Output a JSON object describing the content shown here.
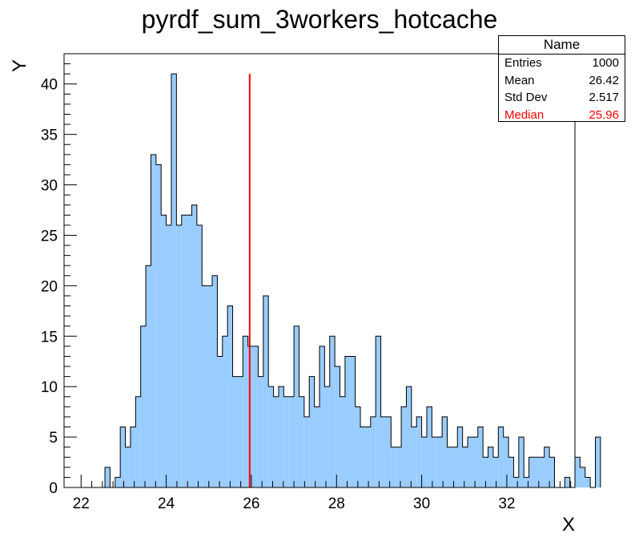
{
  "chart_data": {
    "type": "histogram",
    "title": "pyrdf_sum_3workers_hotcache",
    "xlabel": "X",
    "ylabel": "Y",
    "xlim": [
      21.6,
      33.6
    ],
    "ylim": [
      0,
      43
    ],
    "bin_width": 0.12,
    "x_ticks": [
      "22",
      "24",
      "26",
      "28",
      "30",
      "32"
    ],
    "y_ticks": [
      "0",
      "5",
      "10",
      "15",
      "20",
      "25",
      "30",
      "35",
      "40"
    ],
    "fill_color": "#99ccff",
    "line_color": "#000000",
    "bin_counts": [
      0,
      0,
      0,
      0,
      0,
      0,
      0,
      0,
      2,
      0,
      1,
      6,
      4,
      6,
      9,
      16,
      22,
      33,
      32,
      27,
      26,
      41,
      26,
      27,
      27,
      28,
      26,
      20,
      20,
      21,
      13,
      15,
      18,
      11,
      11,
      15,
      14,
      14,
      11,
      19,
      10,
      9,
      10,
      9,
      9,
      16,
      9,
      7,
      11,
      8,
      14,
      10,
      15,
      12,
      9,
      13,
      13,
      8,
      6,
      6,
      7,
      15,
      7,
      7,
      4,
      4,
      8,
      10,
      6,
      7,
      5,
      8,
      5,
      5,
      7,
      4,
      4,
      6,
      4,
      5,
      5,
      6,
      3,
      4,
      3,
      6,
      5,
      3,
      1,
      5,
      1,
      3,
      3,
      3,
      4,
      3,
      0,
      0,
      1,
      0,
      3,
      2,
      1,
      0,
      5
    ],
    "median_line": {
      "x": 25.96,
      "color": "#ff0000",
      "y_top": 41
    },
    "stats": {
      "name": "Name",
      "rows": [
        {
          "label": "Entries",
          "value": "1000"
        },
        {
          "label": "Mean",
          "value": "26.42"
        },
        {
          "label": "Std Dev",
          "value": "2.517"
        },
        {
          "label": "Median",
          "value": "25.96"
        }
      ]
    }
  }
}
